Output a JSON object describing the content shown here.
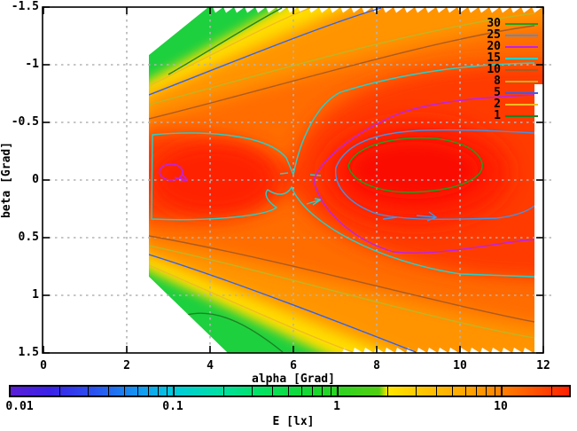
{
  "figure": {
    "xlabel": "alpha [Grad]",
    "ylabel": "beta [Grad]",
    "colorbar_label": "E [lx]"
  },
  "chart_data": {
    "type": "filled-contour-map",
    "title": "",
    "xlabel": "alpha [Grad]",
    "ylabel": "beta [Grad]",
    "x_range": [
      0,
      12
    ],
    "y_range_top_to_bottom": [
      -1.5,
      1.5
    ],
    "x_ticks": [
      "0",
      "2",
      "4",
      "6",
      "8",
      "10",
      "12"
    ],
    "y_ticks": [
      "-1.5",
      "-1",
      "-0.5",
      "0",
      "0.5",
      "1",
      "1.5"
    ],
    "grid": "dashed gray at every labeled tick",
    "contour_levels": [
      {
        "label": "30",
        "color": "#14a41e"
      },
      {
        "label": "25",
        "color": "#4492e6"
      },
      {
        "label": "20",
        "color": "#bc22ec"
      },
      {
        "label": "15",
        "color": "#22d2cc"
      },
      {
        "label": "10",
        "color": "#aa5a20"
      },
      {
        "label": "8",
        "color": "#c2b422"
      },
      {
        "label": "5",
        "color": "#3462ea"
      },
      {
        "label": "2",
        "color": "#f2bc22"
      },
      {
        "label": "1",
        "color": "#1e8222"
      }
    ],
    "colorbar": {
      "label": "E [lx]",
      "scale": "log",
      "ticks": [
        "0.01",
        "0.1",
        "1",
        "10"
      ],
      "range_lx": [
        0.01,
        30
      ],
      "gradient": [
        {
          "pos": 0,
          "color": "#5a1ed6"
        },
        {
          "pos": 7,
          "color": "#3a22e8"
        },
        {
          "pos": 15,
          "color": "#2a52f0"
        },
        {
          "pos": 24,
          "color": "#10a0f0"
        },
        {
          "pos": 29,
          "color": "#00cade"
        },
        {
          "pos": 37,
          "color": "#00dfa6"
        },
        {
          "pos": 45,
          "color": "#04e262"
        },
        {
          "pos": 54,
          "color": "#16d72e"
        },
        {
          "pos": 66,
          "color": "#52cf10"
        },
        {
          "pos": 67.5,
          "color": "#ffe600"
        },
        {
          "pos": 74,
          "color": "#ffc400"
        },
        {
          "pos": 82,
          "color": "#ffa300"
        },
        {
          "pos": 88,
          "color": "#ff8000"
        },
        {
          "pos": 94,
          "color": "#ff5000"
        },
        {
          "pos": 100,
          "color": "#ff2000"
        }
      ]
    },
    "data_region": {
      "alpha_min": 2.5,
      "alpha_max": 11.9,
      "note": "no data (white) left of alpha=2.5; corners cut diagonally toward (4,-1.5) and (4.4,1.5)"
    },
    "features": {
      "primary_maximum": {
        "alpha": 9.0,
        "beta": -0.05,
        "E_lx": ">30"
      },
      "secondary_maximum": {
        "alpha": 3.0,
        "beta": -0.05,
        "E_lx": "~20"
      },
      "saddle": {
        "alpha": 6.0,
        "beta": 0.0,
        "E_lx": "~15"
      },
      "edge_bands": "E falls from red core (>30 lx) through orange/yellow to green (~1 lx) toward the diagonal data boundary"
    }
  }
}
